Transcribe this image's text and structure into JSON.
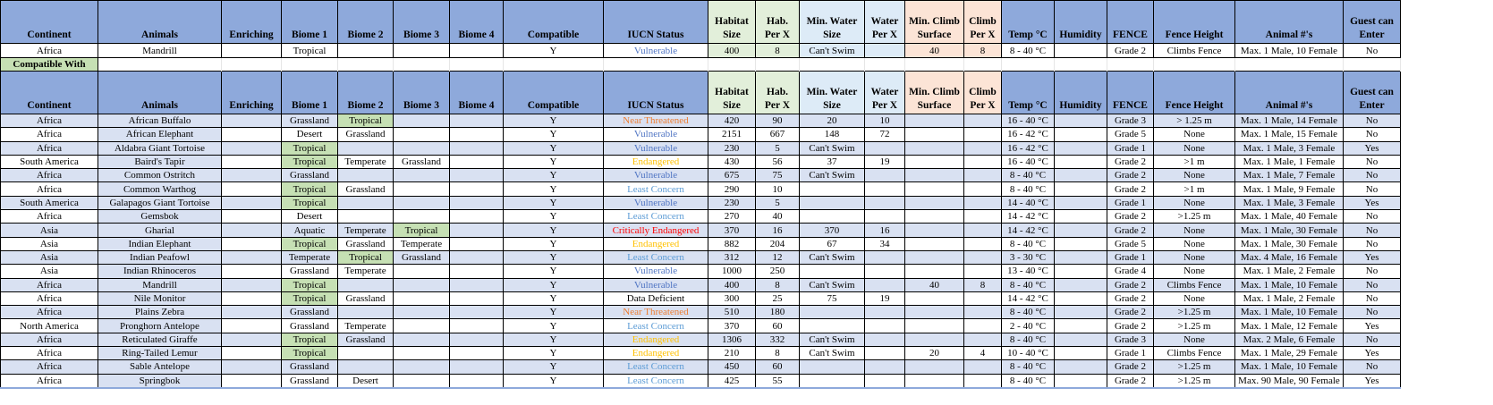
{
  "headers": [
    "Continent",
    "Animals",
    "Enriching",
    "Biome 1",
    "Biome 2",
    "Biome 3",
    "Biome 4",
    "Compatible",
    "IUCN Status",
    "Habitat Size",
    "Hab. Per X",
    "Min. Water Size",
    "Water Per X",
    "Min. Climb Surface",
    "Climb Per X",
    "Temp °C",
    "Humidity",
    "FENCE",
    "Fence Height",
    "Animal #'s",
    "Guest can Enter"
  ],
  "selected": [
    "Africa",
    "Mandrill",
    "",
    "Tropical",
    "",
    "",
    "",
    "Y",
    "Vulnerable",
    "400",
    "8",
    "Can't Swim",
    "",
    "40",
    "8",
    "8 - 40 °C",
    "",
    "Grade 2",
    "Climbs Fence",
    "Max. 1 Male, 10 Female",
    "No"
  ],
  "compatible_label": "Compatible With",
  "iucn_colors": {
    "Near Threatened": "#ed7d31",
    "Vulnerable": "#4f74c3",
    "Least Concern": "#5b9bd5",
    "Endangered": "#ffc000",
    "Critically Endangered": "#ff0000",
    "Data Deficient": "#000000"
  },
  "header_colors": {
    "main": "#8ea9db",
    "habitat": "#e2efda",
    "water": "#ddebf7",
    "climb": "#fce4d6",
    "compatible_label": "#c6e0b4",
    "tropical": "#c6e0b4",
    "stripe": "#d9e1f2"
  },
  "rows": [
    [
      "Africa",
      "African Buffalo",
      "",
      "Grassland",
      "Tropical",
      "",
      "",
      "Y",
      "Near Threatened",
      "420",
      "90",
      "20",
      "10",
      "",
      "",
      "16 - 40 °C",
      "",
      "Grade 3",
      "> 1.25 m",
      "Max. 1 Male, 14 Female",
      "No"
    ],
    [
      "Africa",
      "African Elephant",
      "",
      "Desert",
      "Grassland",
      "",
      "",
      "Y",
      "Vulnerable",
      "2151",
      "667",
      "148",
      "72",
      "",
      "",
      "16 - 42 °C",
      "",
      "Grade 5",
      "None",
      "Max. 1 Male, 15 Female",
      "No"
    ],
    [
      "Africa",
      "Aldabra Giant Tortoise",
      "",
      "Tropical",
      "",
      "",
      "",
      "Y",
      "Vulnerable",
      "230",
      "5",
      "Can't Swim",
      "",
      "",
      "",
      "16 - 42 °C",
      "",
      "Grade 1",
      "None",
      "Max. 1 Male, 3 Female",
      "Yes"
    ],
    [
      "South America",
      "Baird's Tapir",
      "",
      "Tropical",
      "Temperate",
      "Grassland",
      "",
      "Y",
      "Endangered",
      "430",
      "56",
      "37",
      "19",
      "",
      "",
      "16 - 40 °C",
      "",
      "Grade 2",
      ">1 m",
      "Max. 1 Male, 1 Female",
      "No"
    ],
    [
      "Africa",
      "Common Ostritch",
      "",
      "Grassland",
      "",
      "",
      "",
      "Y",
      "Vulnerable",
      "675",
      "75",
      "Can't Swim",
      "",
      "",
      "",
      "8 - 40 °C",
      "",
      "Grade 2",
      "None",
      "Max. 1 Male, 7 Female",
      "No"
    ],
    [
      "Africa",
      "Common Warthog",
      "",
      "Tropical",
      "Grassland",
      "",
      "",
      "Y",
      "Least Concern",
      "290",
      "10",
      "",
      "",
      "",
      "",
      "8 - 40 °C",
      "",
      "Grade 2",
      ">1 m",
      "Max. 1 Male, 9 Female",
      "No"
    ],
    [
      "South America",
      "Galapagos Giant Tortoise",
      "",
      "Tropical",
      "",
      "",
      "",
      "Y",
      "Vulnerable",
      "230",
      "5",
      "",
      "",
      "",
      "",
      "14 - 40 °C",
      "",
      "Grade 1",
      "None",
      "Max. 1 Male, 3 Female",
      "Yes"
    ],
    [
      "Africa",
      "Gemsbok",
      "",
      "Desert",
      "",
      "",
      "",
      "Y",
      "Least Concern",
      "270",
      "40",
      "",
      "",
      "",
      "",
      "14 - 42 °C",
      "",
      "Grade 2",
      ">1.25 m",
      "Max. 1 Male, 40 Female",
      "No"
    ],
    [
      "Asia",
      "Gharial",
      "",
      "Aquatic",
      "Temperate",
      "Tropical",
      "",
      "Y",
      "Critically Endangered",
      "370",
      "16",
      "370",
      "16",
      "",
      "",
      "14 - 42 °C",
      "",
      "Grade 2",
      "None",
      "Max. 1 Male, 30 Female",
      "No"
    ],
    [
      "Asia",
      "Indian Elephant",
      "",
      "Tropical",
      "Grassland",
      "Temperate",
      "",
      "Y",
      "Endangered",
      "882",
      "204",
      "67",
      "34",
      "",
      "",
      "8 - 40 °C",
      "",
      "Grade 5",
      "None",
      "Max. 1 Male, 30 Female",
      "No"
    ],
    [
      "Asia",
      "Indian Peafowl",
      "",
      "Temperate",
      "Tropical",
      "Grassland",
      "",
      "Y",
      "Least Concern",
      "312",
      "12",
      "Can't Swim",
      "",
      "",
      "",
      "3 - 30 °C",
      "",
      "Grade 1",
      "None",
      "Max. 4 Male, 16 Female",
      "Yes"
    ],
    [
      "Asia",
      "Indian Rhinoceros",
      "",
      "Grassland",
      "Temperate",
      "",
      "",
      "Y",
      "Vulnerable",
      "1000",
      "250",
      "",
      "",
      "",
      "",
      "13 - 40 °C",
      "",
      "Grade 4",
      "None",
      "Max. 1 Male, 2 Female",
      "No"
    ],
    [
      "Africa",
      "Mandrill",
      "",
      "Tropical",
      "",
      "",
      "",
      "Y",
      "Vulnerable",
      "400",
      "8",
      "Can't Swim",
      "",
      "40",
      "8",
      "8 - 40 °C",
      "",
      "Grade 2",
      "Climbs Fence",
      "Max. 1 Male, 10 Female",
      "No"
    ],
    [
      "Africa",
      "Nile Monitor",
      "",
      "Tropical",
      "Grassland",
      "",
      "",
      "Y",
      "Data Deficient",
      "300",
      "25",
      "75",
      "19",
      "",
      "",
      "14 - 42 °C",
      "",
      "Grade 2",
      "None",
      "Max. 1 Male, 2 Female",
      "No"
    ],
    [
      "Africa",
      "Plains Zebra",
      "",
      "Grassland",
      "",
      "",
      "",
      "Y",
      "Near Threatened",
      "510",
      "180",
      "",
      "",
      "",
      "",
      "8 - 40 °C",
      "",
      "Grade 2",
      ">1.25 m",
      "Max. 1 Male, 10 Female",
      "No"
    ],
    [
      "North America",
      "Pronghorn Antelope",
      "",
      "Grassland",
      "Temperate",
      "",
      "",
      "Y",
      "Least Concern",
      "370",
      "60",
      "",
      "",
      "",
      "",
      "2 - 40 °C",
      "",
      "Grade 2",
      ">1.25 m",
      "Max. 1 Male, 12 Female",
      "Yes"
    ],
    [
      "Africa",
      "Reticulated Giraffe",
      "",
      "Tropical",
      "Grassland",
      "",
      "",
      "Y",
      "Endangered",
      "1306",
      "332",
      "Can't Swim",
      "",
      "",
      "",
      "8 - 40 °C",
      "",
      "Grade 3",
      "None",
      "Max. 2 Male, 6 Female",
      "No"
    ],
    [
      "Africa",
      "Ring-Tailed Lemur",
      "",
      "Tropical",
      "",
      "",
      "",
      "Y",
      "Endangered",
      "210",
      "8",
      "Can't Swim",
      "",
      "20",
      "4",
      "10 - 40 °C",
      "",
      "Grade 1",
      "Climbs Fence",
      "Max. 1 Male, 29 Female",
      "Yes"
    ],
    [
      "Africa",
      "Sable Antelope",
      "",
      "Grassland",
      "",
      "",
      "",
      "Y",
      "Least Concern",
      "450",
      "60",
      "",
      "",
      "",
      "",
      "8 - 40 °C",
      "",
      "Grade 2",
      ">1.25 m",
      "Max. 1 Male, 10 Female",
      "No"
    ],
    [
      "Africa",
      "Springbok",
      "",
      "Grassland",
      "Desert",
      "",
      "",
      "Y",
      "Least Concern",
      "425",
      "55",
      "",
      "",
      "",
      "",
      "8 - 40 °C",
      "",
      "Grade 2",
      ">1.25 m",
      "Max. 90 Male, 90 Female",
      "Yes"
    ]
  ]
}
